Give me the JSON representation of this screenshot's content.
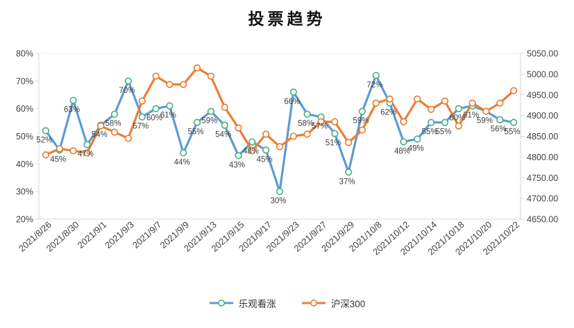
{
  "title": "投票趋势",
  "legend": {
    "items": [
      {
        "label": "乐观看涨"
      },
      {
        "label": "沪深300"
      }
    ]
  },
  "colors": {
    "bullish_line": "#5B9BD5",
    "bullish_marker_ring": "#4EB182",
    "csi300_line": "#ED7D31",
    "csi300_marker_ring": "#ED7D31",
    "value_label_text": "#3F3F3F",
    "axis_text": "#404040",
    "axis_line": "#D6D6D6"
  },
  "chart_data": {
    "type": "line",
    "title": "投票趋势",
    "num_points": 35,
    "x_tick_labels": [
      "2021/8/26",
      "2021/8/30",
      "2021/9/1",
      "2021/9/3",
      "2021/9/7",
      "2021/9/9",
      "2021/9/13",
      "2021/9/15",
      "2021/9/17",
      "2021/9/23",
      "2021/9/27",
      "2021/9/29",
      "2021/10/8",
      "2021/10/12",
      "2021/10/14",
      "2021/10/18",
      "2021/10/20",
      "2021/10/22"
    ],
    "x_tick_every": 2,
    "series": [
      {
        "name": "乐观看涨",
        "axis": "left",
        "data_labels": true,
        "label_format": "percent",
        "values": [
          52,
          45,
          63,
          47,
          54,
          58,
          70,
          57,
          60,
          61,
          44,
          55,
          59,
          54,
          43,
          48,
          45,
          30,
          66,
          58,
          57,
          51,
          37,
          59,
          72,
          62,
          48,
          49,
          55,
          55,
          60,
          61,
          59,
          56,
          55
        ]
      },
      {
        "name": "沪深300",
        "axis": "right",
        "data_labels": false,
        "values": [
          4805,
          4820,
          4815,
          4810,
          4875,
          4860,
          4845,
          4935,
          4995,
          4975,
          4975,
          5015,
          4995,
          4920,
          4870,
          4815,
          4855,
          4825,
          4850,
          4855,
          4885,
          4885,
          4835,
          4865,
          4930,
          4940,
          4885,
          4940,
          4915,
          4935,
          4875,
          4930,
          4910,
          4930,
          4960
        ]
      }
    ],
    "left_axis": {
      "min": 20,
      "max": 80,
      "step": 10,
      "tick_labels": [
        "80%",
        "70%",
        "60%",
        "50%",
        "40%",
        "30%",
        "20%"
      ]
    },
    "right_axis": {
      "min": 4650,
      "max": 5050,
      "step": 50,
      "tick_labels": [
        "5050.00",
        "5000.00",
        "4950.00",
        "4900.00",
        "4850.00",
        "4800.00",
        "4750.00",
        "4700.00",
        "4650.00"
      ]
    },
    "grid": false,
    "legend_position": "bottom"
  }
}
